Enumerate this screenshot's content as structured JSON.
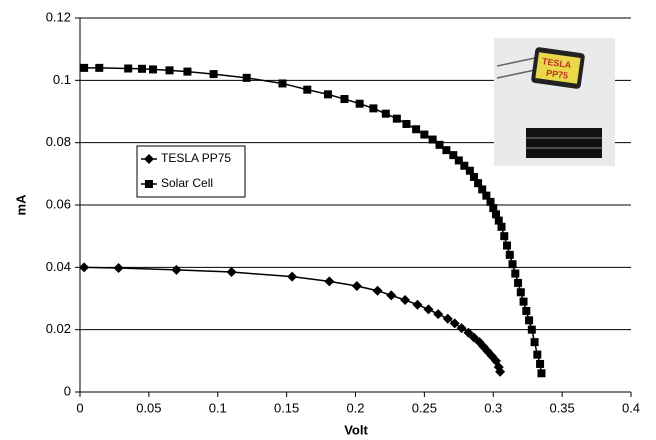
{
  "chart_data": {
    "type": "line",
    "xlabel": "Volt",
    "ylabel": "mA",
    "xlim": [
      0,
      0.4
    ],
    "xticks": [
      0,
      0.05,
      0.1,
      0.15,
      0.2,
      0.25,
      0.3,
      0.35,
      0.4
    ],
    "ylim": [
      0,
      0.12
    ],
    "yticks": [
      0,
      0.02,
      0.04,
      0.06,
      0.08,
      0.1,
      0.12
    ],
    "grid": true,
    "legend": "left",
    "inset_text": [
      "TESLA",
      "PP75"
    ],
    "series": [
      {
        "name": "TESLA PP75",
        "color": "#000000",
        "marker": "diamond",
        "x": [
          0.003,
          0.028,
          0.07,
          0.11,
          0.154,
          0.181,
          0.201,
          0.216,
          0.226,
          0.236,
          0.245,
          0.253,
          0.26,
          0.267,
          0.272,
          0.277,
          0.282,
          0.286,
          0.29,
          0.293,
          0.296,
          0.299,
          0.302,
          0.304,
          0.305
        ],
        "values": [
          0.04,
          0.0398,
          0.0392,
          0.0385,
          0.037,
          0.0355,
          0.034,
          0.0325,
          0.031,
          0.0295,
          0.028,
          0.0265,
          0.025,
          0.0235,
          0.022,
          0.0205,
          0.019,
          0.0175,
          0.016,
          0.0145,
          0.013,
          0.0115,
          0.01,
          0.008,
          0.0065
        ]
      },
      {
        "name": "Solar Cell",
        "color": "#000000",
        "marker": "square",
        "x": [
          0.003,
          0.014,
          0.035,
          0.045,
          0.053,
          0.065,
          0.078,
          0.097,
          0.121,
          0.147,
          0.165,
          0.18,
          0.192,
          0.203,
          0.213,
          0.222,
          0.23,
          0.237,
          0.244,
          0.25,
          0.256,
          0.261,
          0.266,
          0.271,
          0.275,
          0.279,
          0.283,
          0.286,
          0.289,
          0.292,
          0.295,
          0.298,
          0.3,
          0.302,
          0.304,
          0.306,
          0.308,
          0.31,
          0.312,
          0.314,
          0.316,
          0.318,
          0.32,
          0.322,
          0.324,
          0.326,
          0.328,
          0.33,
          0.332,
          0.334,
          0.335
        ],
        "values": [
          0.104,
          0.104,
          0.1038,
          0.1037,
          0.1035,
          0.1032,
          0.1028,
          0.102,
          0.1008,
          0.099,
          0.097,
          0.0955,
          0.094,
          0.0925,
          0.091,
          0.0893,
          0.0877,
          0.086,
          0.0843,
          0.0826,
          0.081,
          0.0793,
          0.0776,
          0.076,
          0.0743,
          0.0726,
          0.071,
          0.069,
          0.067,
          0.065,
          0.063,
          0.061,
          0.059,
          0.057,
          0.055,
          0.053,
          0.05,
          0.047,
          0.044,
          0.041,
          0.038,
          0.035,
          0.032,
          0.029,
          0.026,
          0.023,
          0.02,
          0.016,
          0.012,
          0.009,
          0.006
        ]
      }
    ]
  }
}
